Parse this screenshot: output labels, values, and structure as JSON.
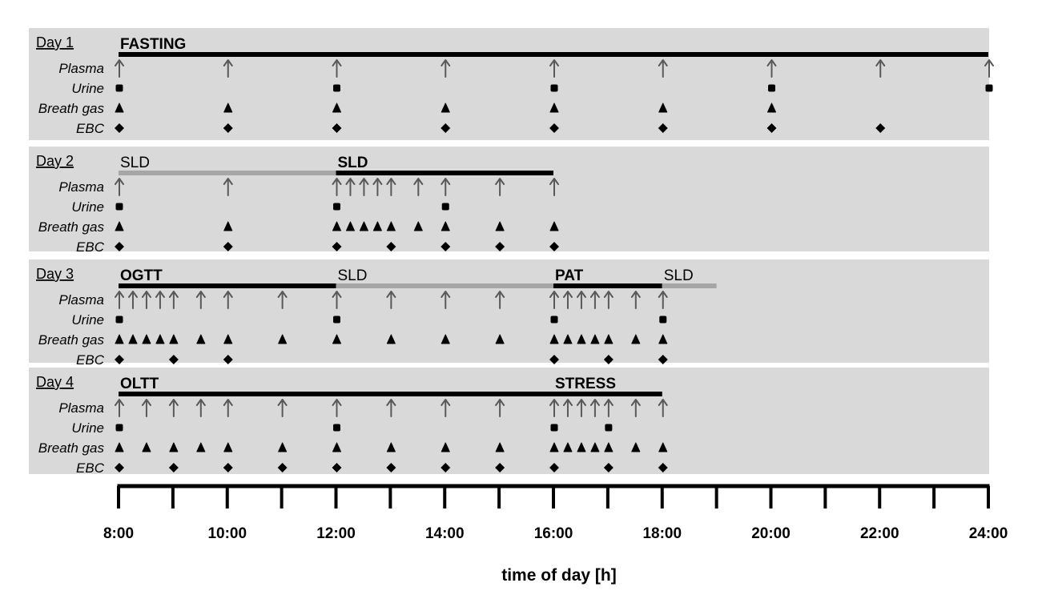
{
  "chart_data": {
    "type": "timeline",
    "x_axis_label": "time of day [h]",
    "x_range_hours": [
      8,
      24
    ],
    "tick_labels": [
      {
        "hour": 8,
        "label": "8:00"
      },
      {
        "hour": 10,
        "label": "10:00"
      },
      {
        "hour": 12,
        "label": "12:00"
      },
      {
        "hour": 14,
        "label": "14:00"
      },
      {
        "hour": 16,
        "label": "16:00"
      },
      {
        "hour": 18,
        "label": "18:00"
      },
      {
        "hour": 20,
        "label": "20:00"
      },
      {
        "hour": 22,
        "label": "22:00"
      },
      {
        "hour": 24,
        "label": "24:00"
      }
    ],
    "minor_tick_hours": [
      8,
      9,
      10,
      11,
      12,
      13,
      14,
      15,
      16,
      17,
      18,
      19,
      20,
      21,
      22,
      23,
      24
    ],
    "row_labels": [
      "Plasma",
      "Urine",
      "Breath gas",
      "EBC"
    ],
    "colors": {
      "panel": "#d9d9d9",
      "phase_main": "#000000",
      "phase_alt": "#a6a6a6",
      "arrow": "#595959",
      "marker": "#000000"
    },
    "days": [
      {
        "label": "Day 1",
        "phases": [
          {
            "label": "FASTING",
            "start": 8,
            "end": 24,
            "style": "main"
          }
        ],
        "samples": {
          "Plasma": [
            8,
            10,
            12,
            14,
            16,
            18,
            20,
            22,
            24
          ],
          "Urine": [
            8,
            12,
            16,
            20,
            24
          ],
          "Breath gas": [
            8,
            10,
            12,
            14,
            16,
            18,
            20
          ],
          "EBC": [
            8,
            10,
            12,
            14,
            16,
            18,
            20,
            22
          ]
        }
      },
      {
        "label": "Day 2",
        "phases": [
          {
            "label": "SLD",
            "start": 8,
            "end": 12,
            "style": "alt"
          },
          {
            "label": "SLD",
            "start": 12,
            "end": 16,
            "style": "main"
          }
        ],
        "samples": {
          "Plasma": [
            8,
            10,
            12,
            12.25,
            12.5,
            12.75,
            13,
            13.5,
            14,
            15,
            16
          ],
          "Urine": [
            8,
            12,
            14
          ],
          "Breath gas": [
            8,
            10,
            12,
            12.25,
            12.5,
            12.75,
            13,
            13.5,
            14,
            15,
            16
          ],
          "EBC": [
            8,
            10,
            12,
            13,
            14,
            15,
            16
          ]
        }
      },
      {
        "label": "Day 3",
        "phases": [
          {
            "label": "OGTT",
            "start": 8,
            "end": 12,
            "style": "main"
          },
          {
            "label": "SLD",
            "start": 12,
            "end": 16,
            "style": "alt"
          },
          {
            "label": "PAT",
            "start": 16,
            "end": 18,
            "style": "main"
          },
          {
            "label": "SLD",
            "start": 18,
            "end": 19,
            "style": "alt"
          }
        ],
        "samples": {
          "Plasma": [
            8,
            8.25,
            8.5,
            8.75,
            9,
            9.5,
            10,
            11,
            12,
            13,
            14,
            15,
            16,
            16.25,
            16.5,
            16.75,
            17,
            17.5,
            18
          ],
          "Urine": [
            8,
            12,
            16,
            18
          ],
          "Breath gas": [
            8,
            8.25,
            8.5,
            8.75,
            9,
            9.5,
            10,
            11,
            12,
            13,
            14,
            15,
            16,
            16.25,
            16.5,
            16.75,
            17,
            17.5,
            18
          ],
          "EBC": [
            8,
            9,
            10,
            16,
            17,
            18
          ]
        }
      },
      {
        "label": "Day 4",
        "phases": [
          {
            "label": "OLTT",
            "start": 8,
            "end": 16,
            "style": "main"
          },
          {
            "label": "STRESS",
            "start": 16,
            "end": 18,
            "style": "main"
          }
        ],
        "samples": {
          "Plasma": [
            8,
            8.5,
            9,
            9.5,
            10,
            11,
            12,
            13,
            14,
            15,
            16,
            16.25,
            16.5,
            16.75,
            17,
            17.5,
            18
          ],
          "Urine": [
            8,
            12,
            16,
            17
          ],
          "Breath gas": [
            8,
            8.5,
            9,
            9.5,
            10,
            11,
            12,
            13,
            14,
            15,
            16,
            16.25,
            16.5,
            16.75,
            17,
            17.5,
            18
          ],
          "EBC": [
            8,
            9,
            10,
            11,
            12,
            13,
            14,
            15,
            16,
            17,
            18
          ]
        }
      }
    ]
  }
}
